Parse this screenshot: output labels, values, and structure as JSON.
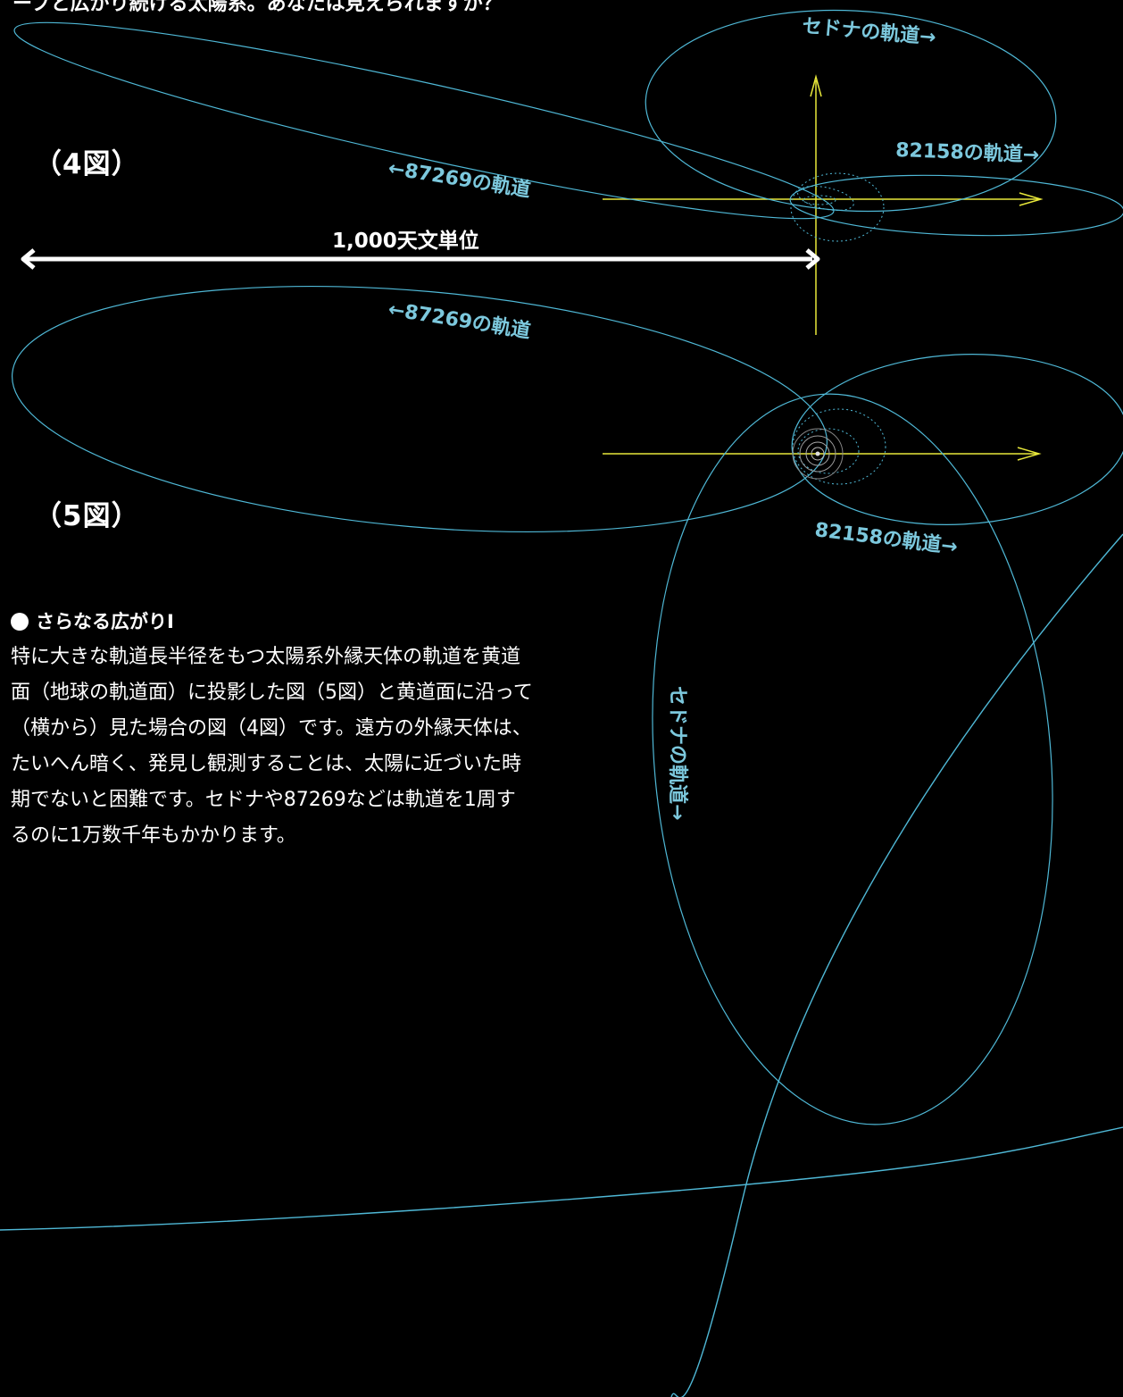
{
  "top_caption": "ープと広がり続ける太陽系。あなたは見えられますか？",
  "figures": {
    "fig4_label": "（4図）",
    "fig5_label": "（5図）"
  },
  "scale": {
    "label": "1,000天文単位"
  },
  "orbit_labels": {
    "fig4_sedna": "セドナの軌道→",
    "fig4_82158": "82158の軌道→",
    "fig4_87269": "←87269の軌道",
    "fig5_87269": "←87269の軌道",
    "fig5_82158": "82158の軌道→",
    "fig5_sedna": "セドナの軌道→"
  },
  "description": {
    "heading": "さらなる広がりⅠ",
    "body": "特に大きな軌道長半径をもつ太陽系外縁天体の軌道を黄道面（地球の軌道面）に投影した図（5図）と黄道面に沿って（横から）見た場合の図（4図）です。遠方の外縁天体は、たいへん暗く、発見し観測することは、太陽に近づいた時期でないと困難です。セドナや87269などは軌道を1周するのに1万数千年もかかります。"
  },
  "colors": {
    "background": "#000000",
    "orbit": "#4fb8d6",
    "axis": "#e8e83a",
    "text": "#ffffff",
    "orbit_label": "#7cc8dd"
  }
}
